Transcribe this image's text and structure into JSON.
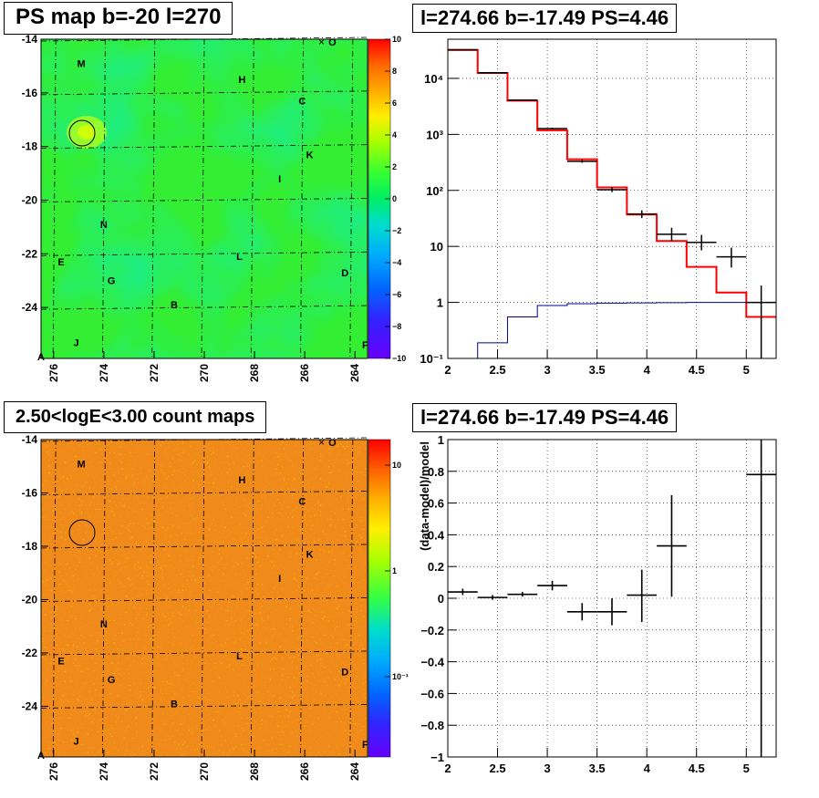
{
  "panels": {
    "ps_map": {
      "title": "PS map b=-20 l=270",
      "x_ticks": [
        276,
        274,
        272,
        270,
        268,
        266,
        264
      ],
      "y_ticks": [
        -14,
        -16,
        -18,
        -20,
        -22,
        -24
      ],
      "xlim": [
        263.5,
        276.5
      ],
      "ylim": [
        -25.9,
        -14
      ],
      "colorbar_ticks": [
        "10",
        "8",
        "6",
        "4",
        "2",
        "0",
        "−2",
        "−4",
        "−6",
        "−8",
        "−10"
      ],
      "colorbar_range": [
        -10,
        10
      ],
      "corner_labels": [
        "A",
        "F"
      ]
    },
    "count_map": {
      "title": "2.50<logE<3.00 count maps",
      "x_ticks": [
        276,
        274,
        272,
        270,
        268,
        266,
        264
      ],
      "y_ticks": [
        -14,
        -16,
        -18,
        -20,
        -22,
        -24
      ],
      "colorbar_ticks": [
        "10",
        "1",
        "10⁻¹"
      ],
      "corner_labels": [
        "A",
        "F"
      ]
    },
    "sources": [
      {
        "label": "M",
        "l": 274.9,
        "b": -14.9
      },
      {
        "label": "H",
        "l": 268.5,
        "b": -15.5
      },
      {
        "label": "C",
        "l": 266.1,
        "b": -16.3
      },
      {
        "label": "K",
        "l": 265.8,
        "b": -18.3
      },
      {
        "label": "I",
        "l": 267.0,
        "b": -19.2
      },
      {
        "label": "N",
        "l": 274.0,
        "b": -20.9
      },
      {
        "label": "E",
        "l": 275.7,
        "b": -22.3
      },
      {
        "label": "L",
        "l": 268.6,
        "b": -22.1
      },
      {
        "label": "D",
        "l": 264.4,
        "b": -22.7
      },
      {
        "label": "G",
        "l": 273.7,
        "b": -23.0
      },
      {
        "label": "B",
        "l": 271.2,
        "b": -23.9
      },
      {
        "label": "J",
        "l": 275.1,
        "b": -25.3
      },
      {
        "label": "O",
        "l": 264.9,
        "b": -14.1
      }
    ]
  },
  "chart_data": [
    {
      "type": "line",
      "title": "l=274.66 b=-17.49 PS=4.46",
      "xlabel": "",
      "ylabel": "",
      "xlim": [
        2,
        5.3
      ],
      "ylim": [
        0.1,
        50000
      ],
      "y_scale": "log",
      "x_ticks": [
        "2",
        "2.5",
        "3",
        "3.5",
        "4",
        "4.5",
        "5"
      ],
      "y_ticks": [
        "10⁻¹",
        "1",
        "10",
        "10²",
        "10³",
        "10⁴"
      ],
      "grid": true,
      "series": [
        {
          "color": "#ff0000",
          "style": "step",
          "bins": [
            [
              2.0,
              2.3,
              32000
            ],
            [
              2.3,
              2.6,
              12500
            ],
            [
              2.6,
              2.9,
              4000
            ],
            [
              2.9,
              3.2,
              1180
            ],
            [
              3.2,
              3.5,
              360
            ],
            [
              3.5,
              3.8,
              113
            ],
            [
              3.8,
              4.1,
              37
            ],
            [
              4.1,
              4.4,
              12.5
            ],
            [
              4.4,
              4.7,
              4.3
            ],
            [
              4.7,
              5.0,
              1.5
            ],
            [
              5.0,
              5.3,
              0.55
            ]
          ]
        },
        {
          "color": "#000099",
          "style": "step",
          "bins": [
            [
              2.0,
              2.3,
              0.1
            ],
            [
              2.3,
              2.6,
              0.19
            ],
            [
              2.6,
              2.9,
              0.55
            ],
            [
              2.9,
              3.2,
              0.88
            ],
            [
              3.2,
              3.5,
              0.95
            ],
            [
              3.5,
              3.8,
              0.97
            ],
            [
              3.8,
              4.1,
              0.98
            ],
            [
              4.1,
              4.4,
              0.99
            ],
            [
              4.4,
              4.7,
              1.0
            ],
            [
              4.7,
              5.0,
              1.0
            ],
            [
              5.0,
              5.3,
              1.0
            ]
          ]
        },
        {
          "color": "#000000",
          "style": "points",
          "points": [
            {
              "x": 2.15,
              "y": 32500,
              "xerr": 0.15,
              "ylo": 32300,
              "yhi": 32700
            },
            {
              "x": 2.45,
              "y": 12600,
              "xerr": 0.15,
              "ylo": 12450,
              "yhi": 12750
            },
            {
              "x": 2.75,
              "y": 4100,
              "xerr": 0.15,
              "ylo": 4030,
              "yhi": 4170
            },
            {
              "x": 3.05,
              "y": 1270,
              "xerr": 0.15,
              "ylo": 1230,
              "yhi": 1310
            },
            {
              "x": 3.35,
              "y": 330,
              "xerr": 0.15,
              "ylo": 312,
              "yhi": 348
            },
            {
              "x": 3.65,
              "y": 103,
              "xerr": 0.15,
              "ylo": 93,
              "yhi": 113
            },
            {
              "x": 3.95,
              "y": 38,
              "xerr": 0.15,
              "ylo": 32,
              "yhi": 44
            },
            {
              "x": 4.25,
              "y": 16.5,
              "xerr": 0.15,
              "ylo": 12.5,
              "yhi": 21.5
            },
            {
              "x": 4.55,
              "y": 11.8,
              "xerr": 0.15,
              "ylo": 8.5,
              "yhi": 16
            },
            {
              "x": 4.85,
              "y": 6.5,
              "xerr": 0.15,
              "ylo": 4.2,
              "yhi": 9.5
            },
            {
              "x": 5.15,
              "y": 1.0,
              "xerr": 0.15,
              "ylo": 0.1,
              "yhi": 2.0
            }
          ]
        }
      ]
    },
    {
      "type": "scatter",
      "title": "l=274.66 b=-17.49 PS=4.46",
      "xlabel": "",
      "ylabel": "(data-model)/model",
      "xlim": [
        2,
        5.3
      ],
      "ylim": [
        -1,
        1
      ],
      "x_ticks": [
        "2",
        "2.5",
        "3",
        "3.5",
        "4",
        "4.5",
        "5"
      ],
      "y_ticks": [
        "1",
        "0.8",
        "0.6",
        "0.4",
        "0.2",
        "0",
        "−0.2",
        "−0.4",
        "−0.6",
        "−0.8",
        "−1"
      ],
      "grid": true,
      "series": [
        {
          "color": "#000000",
          "points": [
            {
              "x": 2.15,
              "y": 0.04,
              "xerr": 0.15,
              "ylo": 0.02,
              "yhi": 0.06
            },
            {
              "x": 2.45,
              "y": 0.005,
              "xerr": 0.15,
              "ylo": -0.01,
              "yhi": 0.02
            },
            {
              "x": 2.75,
              "y": 0.025,
              "xerr": 0.15,
              "ylo": 0.01,
              "yhi": 0.04
            },
            {
              "x": 3.05,
              "y": 0.08,
              "xerr": 0.15,
              "ylo": 0.05,
              "yhi": 0.11
            },
            {
              "x": 3.35,
              "y": -0.085,
              "xerr": 0.15,
              "ylo": -0.14,
              "yhi": -0.03
            },
            {
              "x": 3.65,
              "y": -0.085,
              "xerr": 0.15,
              "ylo": -0.17,
              "yhi": 0.0
            },
            {
              "x": 3.95,
              "y": 0.02,
              "xerr": 0.15,
              "ylo": -0.15,
              "yhi": 0.18
            },
            {
              "x": 4.25,
              "y": 0.33,
              "xerr": 0.15,
              "ylo": 0.01,
              "yhi": 0.65
            },
            {
              "x": 5.15,
              "y": 0.78,
              "xerr": 0.15,
              "ylo": -1.0,
              "yhi": 1.0
            }
          ]
        }
      ]
    }
  ]
}
